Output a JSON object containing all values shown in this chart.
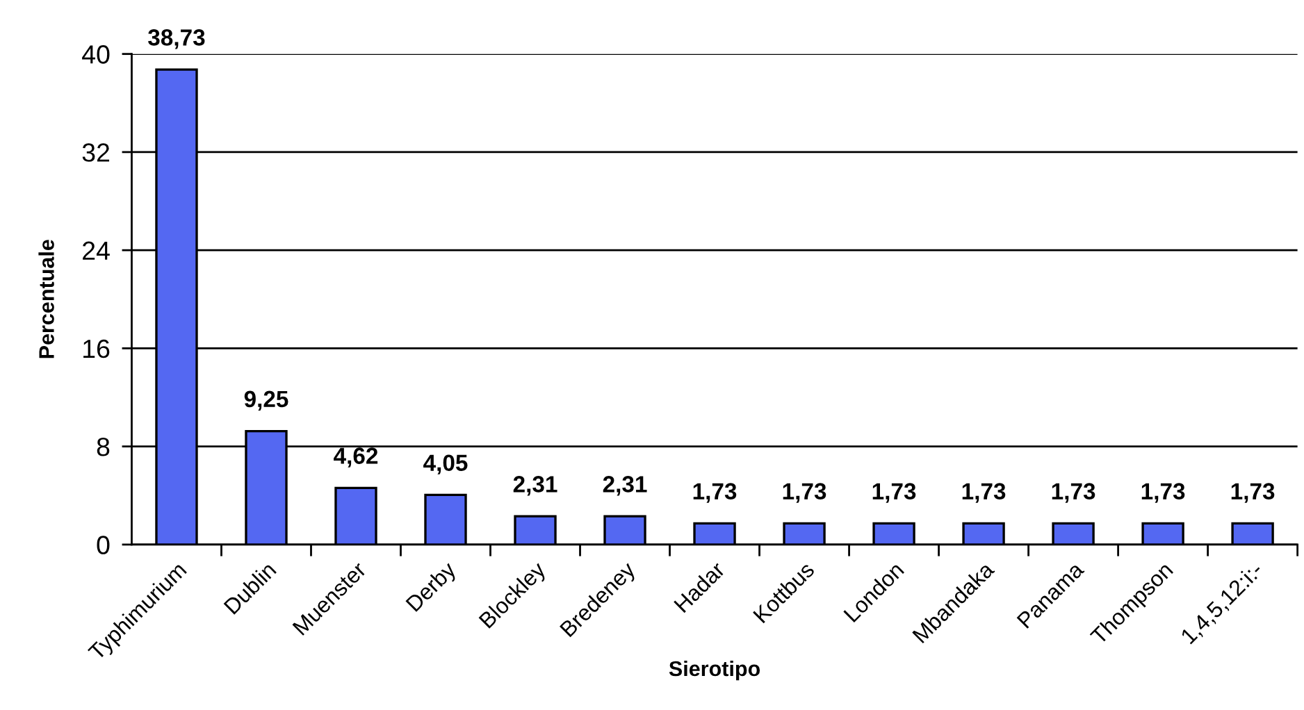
{
  "chart_data": {
    "type": "bar",
    "xlabel": "Sierotipo",
    "ylabel": "Percentuale",
    "categories": [
      "Typhimurium",
      "Dublin",
      "Muenster",
      "Derby",
      "Blockley",
      "Bredeney",
      "Hadar",
      "Kottbus",
      "London",
      "Mbandaka",
      "Panama",
      "Thompson",
      "1,4,5,12:i:-"
    ],
    "values": [
      38.73,
      9.25,
      4.62,
      4.05,
      2.31,
      2.31,
      1.73,
      1.73,
      1.73,
      1.73,
      1.73,
      1.73,
      1.73
    ],
    "value_labels": [
      "38,73",
      "9,25",
      "4,62",
      "4,05",
      "2,31",
      "2,31",
      "1,73",
      "1,73",
      "1,73",
      "1,73",
      "1,73",
      "1,73",
      "1,73"
    ],
    "color": "#5468f2",
    "ylim": [
      0,
      40
    ],
    "yticks": [
      0,
      8,
      16,
      24,
      32,
      40
    ],
    "grid": "y",
    "legend": false
  }
}
